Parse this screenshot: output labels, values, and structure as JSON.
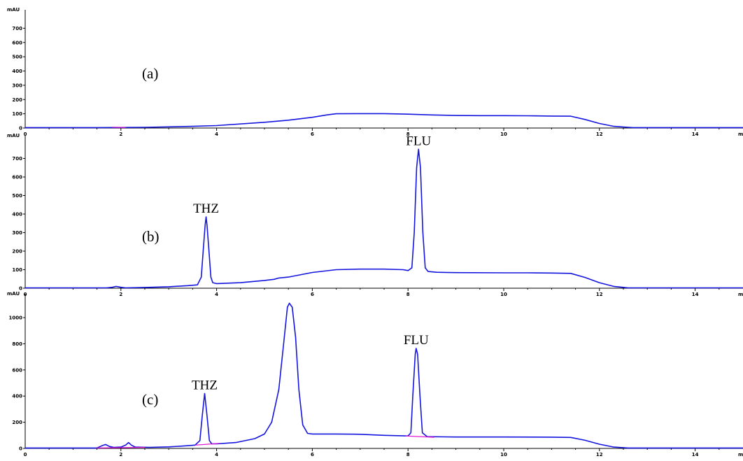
{
  "chart_data": [
    {
      "type": "line",
      "panel_label": "(a)",
      "yunit": "mAU",
      "xunit": "mi",
      "xlim": [
        0,
        15
      ],
      "ylim": [
        0,
        800
      ],
      "x_ticks": [
        0,
        2,
        4,
        6,
        8,
        10,
        12,
        14
      ],
      "y_ticks": [
        0,
        100,
        200,
        300,
        400,
        500,
        600,
        700
      ],
      "annotations": [],
      "series": [
        {
          "color": "#1515e0",
          "points": [
            [
              0,
              3
            ],
            [
              1.5,
              3
            ],
            [
              2.5,
              5
            ],
            [
              3.5,
              12
            ],
            [
              4,
              17
            ],
            [
              5,
              40
            ],
            [
              5.5,
              55
            ],
            [
              6,
              75
            ],
            [
              6.3,
              92
            ],
            [
              6.5,
              100
            ],
            [
              7,
              101
            ],
            [
              7.5,
              101
            ],
            [
              8,
              97
            ],
            [
              8.5,
              92
            ],
            [
              9,
              88
            ],
            [
              9.5,
              87
            ],
            [
              10,
              87
            ],
            [
              10.5,
              86
            ],
            [
              11,
              84
            ],
            [
              11.4,
              83
            ],
            [
              11.7,
              60
            ],
            [
              12,
              32
            ],
            [
              12.3,
              12
            ],
            [
              12.7,
              3
            ],
            [
              15,
              3
            ]
          ]
        },
        {
          "color": "#e010d0",
          "points": [
            [
              1.82,
              6
            ],
            [
              2.1,
              4
            ]
          ]
        }
      ]
    },
    {
      "type": "line",
      "panel_label": "(b)",
      "yunit": "mAU",
      "xunit": "mi",
      "xlim": [
        0,
        15
      ],
      "ylim": [
        0,
        800
      ],
      "x_ticks": [
        0,
        2,
        4,
        6,
        8,
        10,
        12,
        14
      ],
      "y_ticks": [
        0,
        100,
        200,
        300,
        400,
        500,
        600,
        700
      ],
      "annotations": [
        {
          "text": "THZ",
          "x": 3.78,
          "y": 385
        },
        {
          "text": "FLU",
          "x": 8.22,
          "y": 750
        }
      ],
      "series": [
        {
          "color": "#1515e0",
          "points": [
            [
              0,
              2
            ],
            [
              1.7,
              2
            ],
            [
              1.82,
              5
            ],
            [
              1.9,
              10
            ],
            [
              2,
              5
            ],
            [
              2.1,
              2
            ],
            [
              2.5,
              4
            ],
            [
              3,
              8
            ],
            [
              3.4,
              14
            ],
            [
              3.6,
              18
            ],
            [
              3.68,
              60
            ],
            [
              3.72,
              200
            ],
            [
              3.76,
              340
            ],
            [
              3.78,
              385
            ],
            [
              3.8,
              340
            ],
            [
              3.84,
              200
            ],
            [
              3.88,
              60
            ],
            [
              3.92,
              30
            ],
            [
              4,
              25
            ],
            [
              4.5,
              30
            ],
            [
              5,
              42
            ],
            [
              5.2,
              48
            ],
            [
              5.3,
              55
            ],
            [
              5.5,
              60
            ],
            [
              6,
              85
            ],
            [
              6.5,
              100
            ],
            [
              7,
              103
            ],
            [
              7.5,
              103
            ],
            [
              7.9,
              100
            ],
            [
              8,
              95
            ],
            [
              8.08,
              110
            ],
            [
              8.13,
              300
            ],
            [
              8.18,
              650
            ],
            [
              8.22,
              750
            ],
            [
              8.26,
              650
            ],
            [
              8.31,
              300
            ],
            [
              8.36,
              110
            ],
            [
              8.42,
              90
            ],
            [
              8.6,
              86
            ],
            [
              9,
              84
            ],
            [
              10,
              83
            ],
            [
              10.5,
              83
            ],
            [
              11,
              82
            ],
            [
              11.4,
              80
            ],
            [
              11.7,
              58
            ],
            [
              12,
              30
            ],
            [
              12.3,
              10
            ],
            [
              12.6,
              2
            ],
            [
              15,
              2
            ]
          ]
        }
      ]
    },
    {
      "type": "line",
      "panel_label": "(c)",
      "yunit": "mAU",
      "xunit": "mi",
      "xlim": [
        0,
        15
      ],
      "ylim": [
        0,
        1150
      ],
      "x_ticks": [
        0,
        2,
        4,
        6,
        8,
        10,
        12,
        14
      ],
      "y_ticks": [
        0,
        200,
        400,
        600,
        800,
        1000
      ],
      "annotations": [
        {
          "text": "THZ",
          "x": 3.75,
          "y": 420
        },
        {
          "text": "FLU",
          "x": 8.17,
          "y": 765
        }
      ],
      "series": [
        {
          "color": "#1515e0",
          "points": [
            [
              0,
              3
            ],
            [
              1.5,
              3
            ],
            [
              1.6,
              20
            ],
            [
              1.68,
              30
            ],
            [
              1.76,
              15
            ],
            [
              1.85,
              8
            ],
            [
              2,
              10
            ],
            [
              2.1,
              25
            ],
            [
              2.16,
              45
            ],
            [
              2.22,
              25
            ],
            [
              2.3,
              10
            ],
            [
              2.6,
              8
            ],
            [
              3,
              12
            ],
            [
              3.3,
              18
            ],
            [
              3.55,
              25
            ],
            [
              3.65,
              60
            ],
            [
              3.7,
              250
            ],
            [
              3.75,
              420
            ],
            [
              3.8,
              250
            ],
            [
              3.85,
              60
            ],
            [
              3.9,
              35
            ],
            [
              4,
              35
            ],
            [
              4.4,
              45
            ],
            [
              4.8,
              75
            ],
            [
              5,
              110
            ],
            [
              5.15,
              200
            ],
            [
              5.3,
              450
            ],
            [
              5.4,
              800
            ],
            [
              5.48,
              1080
            ],
            [
              5.52,
              1110
            ],
            [
              5.58,
              1080
            ],
            [
              5.65,
              850
            ],
            [
              5.72,
              450
            ],
            [
              5.8,
              180
            ],
            [
              5.9,
              115
            ],
            [
              6,
              110
            ],
            [
              6.5,
              110
            ],
            [
              7,
              108
            ],
            [
              7.5,
              100
            ],
            [
              8,
              95
            ],
            [
              8.06,
              120
            ],
            [
              8.1,
              400
            ],
            [
              8.15,
              720
            ],
            [
              8.17,
              765
            ],
            [
              8.2,
              720
            ],
            [
              8.25,
              400
            ],
            [
              8.3,
              120
            ],
            [
              8.4,
              90
            ],
            [
              9,
              87
            ],
            [
              10,
              87
            ],
            [
              11,
              86
            ],
            [
              11.4,
              84
            ],
            [
              11.7,
              62
            ],
            [
              12,
              32
            ],
            [
              12.3,
              10
            ],
            [
              12.6,
              3
            ],
            [
              15,
              3
            ]
          ]
        },
        {
          "color": "#e010d0",
          "points": [
            [
              1.5,
              3
            ],
            [
              2.5,
              8
            ]
          ]
        },
        {
          "color": "#e010d0",
          "points": [
            [
              3.55,
              25
            ],
            [
              4.05,
              38
            ]
          ]
        },
        {
          "color": "#e010d0",
          "points": [
            [
              7.95,
              95
            ],
            [
              8.55,
              85
            ]
          ]
        }
      ]
    }
  ]
}
